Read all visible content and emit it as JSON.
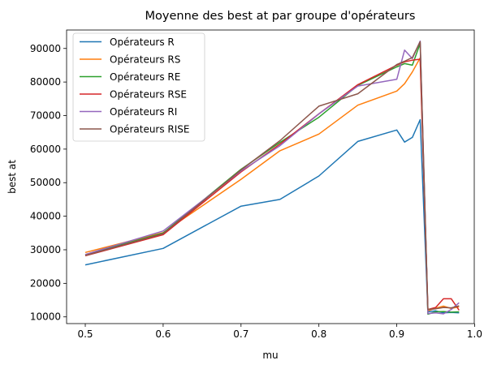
{
  "chart_data": {
    "type": "line",
    "title": "Moyenne des best at par groupe d'opérateurs",
    "xlabel": "mu",
    "ylabel": "best at",
    "xlim": [
      0.476,
      0.9995
    ],
    "ylim": [
      8000,
      95500
    ],
    "x_ticks": [
      0.5,
      0.6,
      0.7,
      0.8,
      0.9,
      1.0
    ],
    "x_tick_labels": [
      "0.5",
      "0.6",
      "0.7",
      "0.8",
      "0.9",
      "1.0"
    ],
    "y_ticks": [
      10000,
      20000,
      30000,
      40000,
      50000,
      60000,
      70000,
      80000,
      90000
    ],
    "y_tick_labels": [
      "10000",
      "20000",
      "30000",
      "40000",
      "50000",
      "60000",
      "70000",
      "80000",
      "90000"
    ],
    "grid": false,
    "legend_position": "top-left",
    "series": [
      {
        "name": "Opérateurs R",
        "color": "#1f77b4",
        "points": [
          [
            0.5,
            25500
          ],
          [
            0.6,
            30400
          ],
          [
            0.7,
            43000
          ],
          [
            0.75,
            45000
          ],
          [
            0.8,
            52000
          ],
          [
            0.85,
            62300
          ],
          [
            0.9,
            65700
          ],
          [
            0.91,
            62100
          ],
          [
            0.92,
            63500
          ],
          [
            0.93,
            68800
          ],
          [
            0.94,
            11500
          ],
          [
            0.95,
            11800
          ],
          [
            0.96,
            11200
          ],
          [
            0.97,
            11300
          ],
          [
            0.98,
            11200
          ]
        ]
      },
      {
        "name": "Opérateurs RS",
        "color": "#ff7f0e",
        "points": [
          [
            0.5,
            29200
          ],
          [
            0.6,
            35100
          ],
          [
            0.7,
            51000
          ],
          [
            0.75,
            59500
          ],
          [
            0.8,
            64500
          ],
          [
            0.85,
            73100
          ],
          [
            0.9,
            77300
          ],
          [
            0.91,
            79500
          ],
          [
            0.92,
            83000
          ],
          [
            0.93,
            87200
          ],
          [
            0.94,
            11800
          ],
          [
            0.95,
            12600
          ],
          [
            0.96,
            13200
          ],
          [
            0.97,
            12500
          ],
          [
            0.98,
            13000
          ]
        ]
      },
      {
        "name": "Opérateurs RE",
        "color": "#2ca02c",
        "points": [
          [
            0.5,
            28500
          ],
          [
            0.6,
            35000
          ],
          [
            0.7,
            54000
          ],
          [
            0.75,
            62000
          ],
          [
            0.8,
            69500
          ],
          [
            0.85,
            79000
          ],
          [
            0.9,
            84500
          ],
          [
            0.91,
            85500
          ],
          [
            0.92,
            85000
          ],
          [
            0.93,
            91500
          ],
          [
            0.94,
            10800
          ],
          [
            0.95,
            11500
          ],
          [
            0.96,
            11600
          ],
          [
            0.97,
            11400
          ],
          [
            0.98,
            11500
          ]
        ]
      },
      {
        "name": "Opérateurs RSE",
        "color": "#d62728",
        "points": [
          [
            0.5,
            28200
          ],
          [
            0.6,
            34500
          ],
          [
            0.7,
            53200
          ],
          [
            0.75,
            61500
          ],
          [
            0.8,
            70500
          ],
          [
            0.85,
            79200
          ],
          [
            0.9,
            85000
          ],
          [
            0.91,
            86000
          ],
          [
            0.92,
            86500
          ],
          [
            0.93,
            86800
          ],
          [
            0.94,
            12200
          ],
          [
            0.95,
            12800
          ],
          [
            0.96,
            15400
          ],
          [
            0.97,
            15400
          ],
          [
            0.98,
            12000
          ]
        ]
      },
      {
        "name": "Opérateurs RI",
        "color": "#9467bd",
        "points": [
          [
            0.5,
            28600
          ],
          [
            0.6,
            35600
          ],
          [
            0.7,
            53500
          ],
          [
            0.75,
            61000
          ],
          [
            0.8,
            70500
          ],
          [
            0.85,
            78800
          ],
          [
            0.9,
            80800
          ],
          [
            0.91,
            89500
          ],
          [
            0.92,
            87000
          ],
          [
            0.93,
            92200
          ],
          [
            0.94,
            11000
          ],
          [
            0.95,
            11200
          ],
          [
            0.96,
            10900
          ],
          [
            0.97,
            12200
          ],
          [
            0.98,
            14200
          ]
        ]
      },
      {
        "name": "Opérateurs RISE",
        "color": "#8c564b",
        "points": [
          [
            0.5,
            28300
          ],
          [
            0.6,
            34800
          ],
          [
            0.7,
            53800
          ],
          [
            0.75,
            62500
          ],
          [
            0.8,
            72800
          ],
          [
            0.85,
            76500
          ],
          [
            0.9,
            85200
          ],
          [
            0.91,
            86200
          ],
          [
            0.92,
            87300
          ],
          [
            0.93,
            92000
          ],
          [
            0.94,
            12200
          ],
          [
            0.95,
            12400
          ],
          [
            0.96,
            12800
          ],
          [
            0.97,
            12700
          ],
          [
            0.98,
            13300
          ]
        ]
      }
    ]
  }
}
